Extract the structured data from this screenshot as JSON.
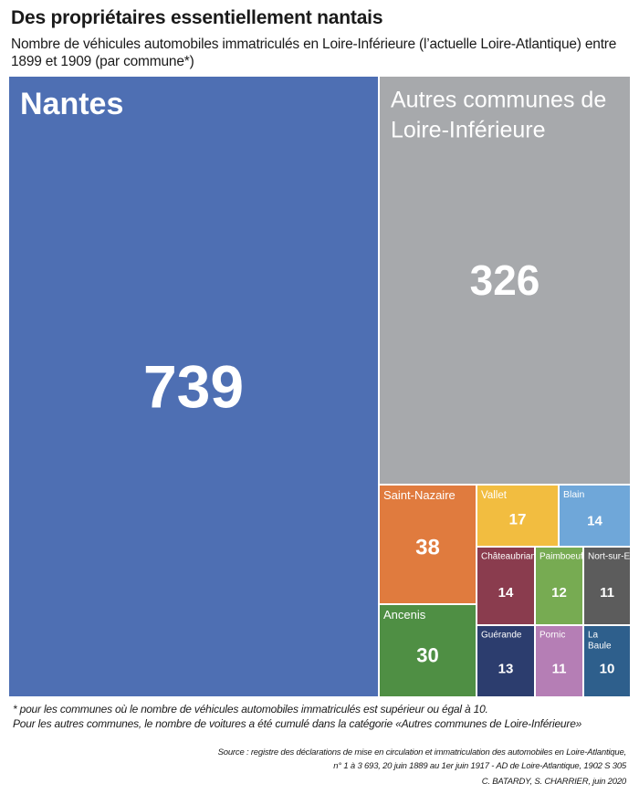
{
  "chart_data": {
    "type": "treemap",
    "title": "Des propriétaires essentiellement nantais",
    "subtitle": "Nombre de véhicules automobiles immatriculés en Loire-Inférieure (l’actuelle Loire-Atlantique) entre 1899 et 1909 (par commune*)",
    "cells": [
      {
        "name": "Nantes",
        "value": 739,
        "color": "#4e6fb3"
      },
      {
        "name": "Autres communes de Loire-Inférieure",
        "value": 326,
        "color": "#a7a9ac"
      },
      {
        "name": "Saint-Nazaire",
        "value": 38,
        "color": "#e07b3e"
      },
      {
        "name": "Vallet",
        "value": 17,
        "color": "#f2bd40"
      },
      {
        "name": "Blain",
        "value": 14,
        "color": "#6fa7d9"
      },
      {
        "name": "Châteaubriant",
        "value": 14,
        "color": "#8a3c4e"
      },
      {
        "name": "Paimboeuf",
        "value": 12,
        "color": "#77ab52"
      },
      {
        "name": "Nort-sur-Erdre",
        "value": 11,
        "color": "#5c5c5c"
      },
      {
        "name": "Ancenis",
        "value": 30,
        "color": "#4f8f44"
      },
      {
        "name": "Guérande",
        "value": 13,
        "color": "#2c3d6e"
      },
      {
        "name": "Pornic",
        "value": 11,
        "color": "#b57eb5"
      },
      {
        "name": "La Baule",
        "value": 10,
        "color": "#2e5f8c"
      }
    ]
  },
  "footnote": {
    "line1": "* pour les communes où le nombre de véhicules automobiles immatriculés est supérieur ou égal à 10.",
    "line2": "Pour les autres communes, le nombre de voitures a été cumulé dans la catégorie «Autres communes de Loire-Inférieure»"
  },
  "source": {
    "line1": "Source : registre des déclarations de mise en circulation et immatriculation des automobiles en Loire-Atlantique,",
    "line2": "n° 1 à 3 693, 20 juin 1889 au 1er juin 1917 - AD de Loire-Atlantique, 1902 S 305"
  },
  "credit": "C. BATARDY, S. CHARRIER, juin 2020"
}
